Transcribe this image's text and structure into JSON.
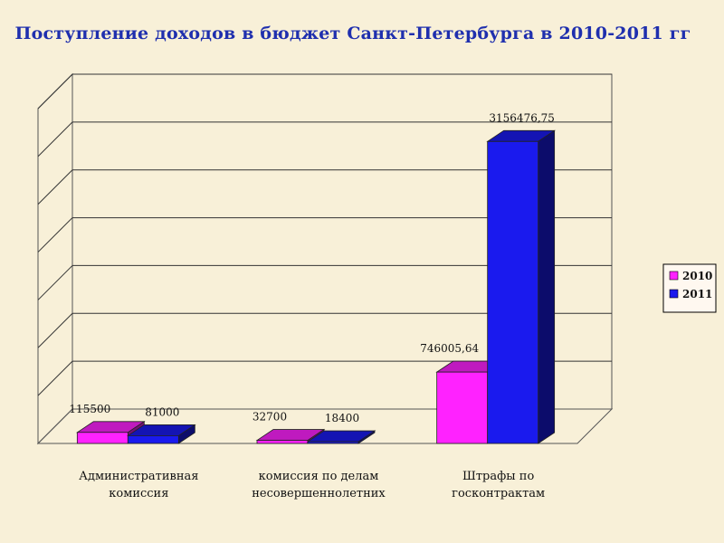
{
  "chart_data": {
    "type": "bar",
    "title": "Поступление доходов в бюджет Санкт-Петербурга в 2010-2011 гг",
    "categories": [
      [
        "Административная",
        "комиссия"
      ],
      [
        "комиссия по делам",
        "несовершеннолетних"
      ],
      [
        "Штрафы по",
        "госконтрактам"
      ]
    ],
    "series": [
      {
        "name": "2010",
        "values": [
          115500,
          32700,
          746005.64
        ],
        "labels": [
          "115500",
          "32700",
          "746005,64"
        ]
      },
      {
        "name": "2011",
        "values": [
          81000,
          18400,
          3156476.75
        ],
        "labels": [
          "81000",
          "18400",
          "3156476,75"
        ]
      }
    ],
    "ylim": [
      0,
      3500000
    ],
    "grid": true,
    "legend": "right",
    "colors": {
      "2010": "#ff22ff",
      "2011": "#1a1aee",
      "title": "#1f2fae",
      "background": "#f8f0d8"
    }
  }
}
